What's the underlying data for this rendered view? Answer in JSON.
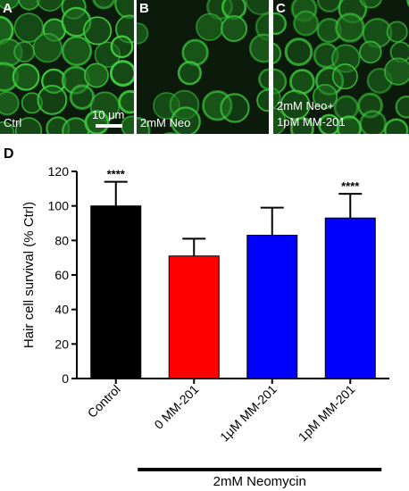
{
  "panels": [
    {
      "letter": "A",
      "label_lines": [
        "Ctrl"
      ],
      "scale_bar_label": "10 μm"
    },
    {
      "letter": "B",
      "label_lines": [
        "2mM Neo"
      ]
    },
    {
      "letter": "C",
      "label_lines": [
        "2mM Neo+",
        "1pM MM-201"
      ]
    }
  ],
  "panel_colors": {
    "background": "#0b1a0b",
    "cell_fill": "#1f6e1f",
    "cell_edge": "#3fd23f"
  },
  "chart_panel_letter": "D",
  "chart_data": {
    "type": "bar",
    "categories": [
      "Control",
      "0 MM-201",
      "1μM MM-201",
      "1pM MM-201"
    ],
    "values": [
      100,
      71,
      83,
      93
    ],
    "error_upper": [
      114,
      81,
      99,
      107
    ],
    "significance": [
      "****",
      "",
      "",
      "****"
    ],
    "colors": [
      "#000000",
      "#ff0000",
      "#0000ff",
      "#0000ff"
    ],
    "ylabel": "Hair cell survival (% Ctrl)",
    "xlabel": "",
    "ylim": [
      0,
      120
    ],
    "yticks": [
      0,
      20,
      40,
      60,
      80,
      100,
      120
    ],
    "group_label": "2mM Neomycin",
    "grid": false
  }
}
